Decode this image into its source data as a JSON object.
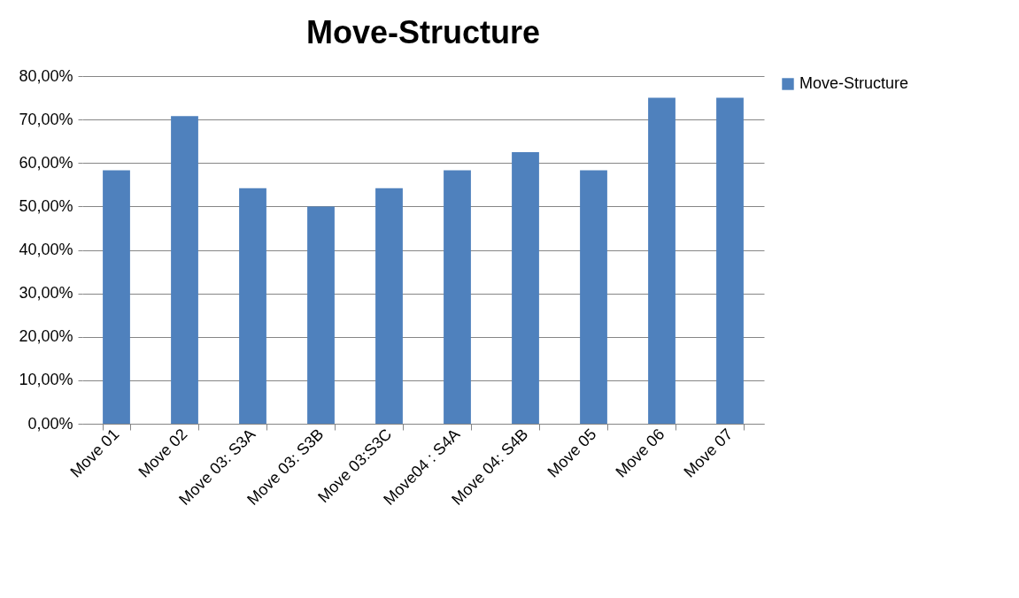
{
  "chart_data": {
    "type": "bar",
    "title": "Move-Structure",
    "categories": [
      "Move 01",
      "Move 02",
      "Move 03: S3A",
      "Move 03: S3B",
      "Move 03:S3C",
      "Move04 : S4A",
      "Move 04: S4B",
      "Move 05",
      "Move 06",
      "Move 07"
    ],
    "series": [
      {
        "name": "Move-Structure",
        "color": "#4f81bd",
        "values": [
          58.3,
          70.8,
          54.2,
          50,
          54.2,
          58.3,
          62.5,
          58.3,
          75,
          75
        ]
      }
    ],
    "ylim": [
      0,
      80
    ],
    "yticks": [
      {
        "value": 0,
        "label": "0,00%"
      },
      {
        "value": 10,
        "label": "10,00%"
      },
      {
        "value": 20,
        "label": "20,00%"
      },
      {
        "value": 30,
        "label": "30,00%"
      },
      {
        "value": 40,
        "label": "40,00%"
      },
      {
        "value": 50,
        "label": "50,00%"
      },
      {
        "value": 60,
        "label": "60,00%"
      },
      {
        "value": 70,
        "label": "70,00%"
      },
      {
        "value": 80,
        "label": "80,00%"
      }
    ],
    "grid": "y",
    "legend": "right"
  }
}
